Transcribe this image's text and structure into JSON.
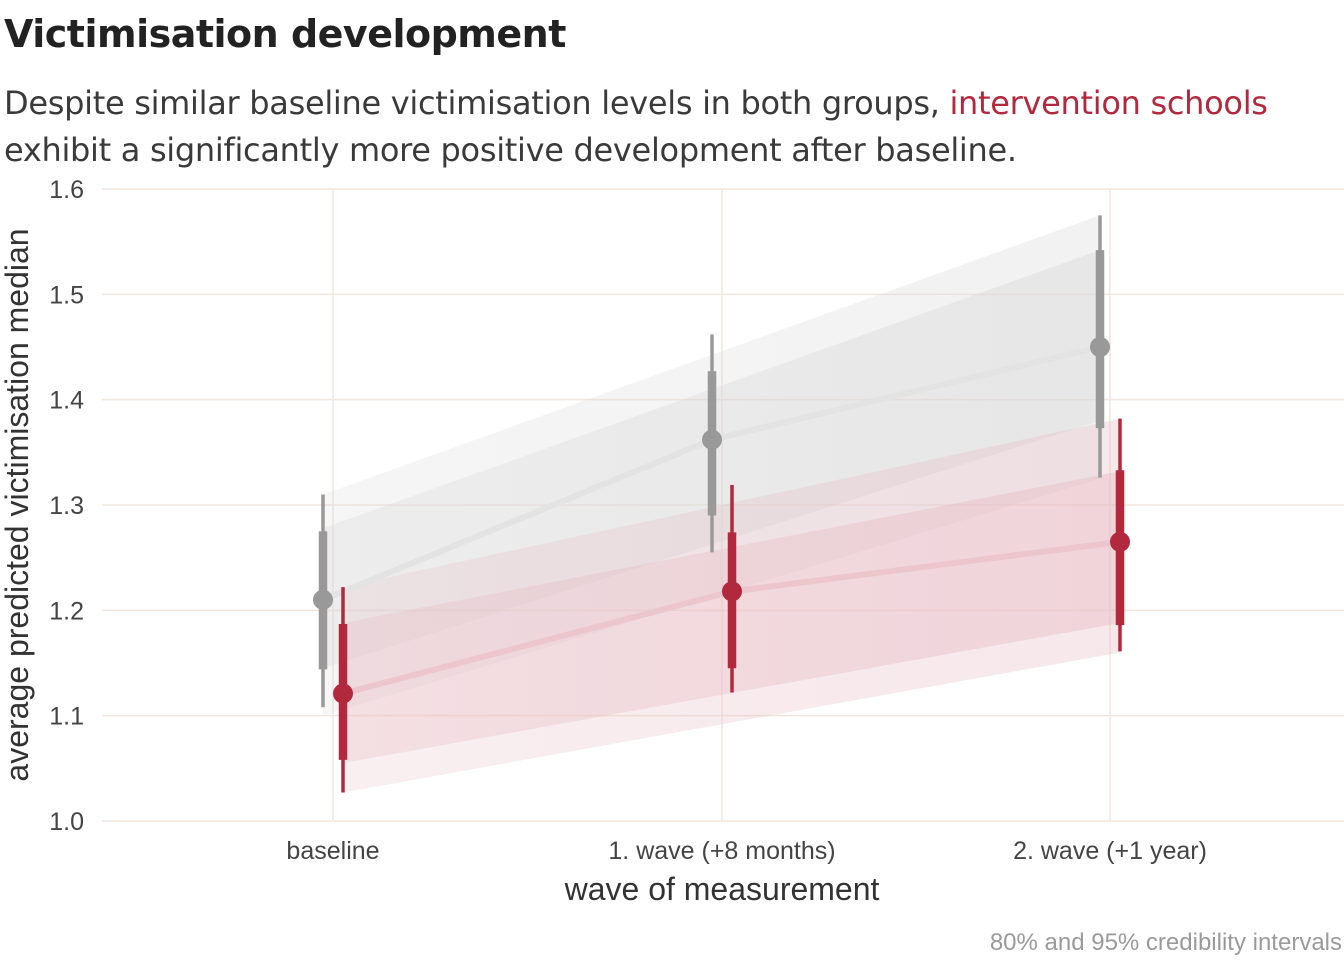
{
  "title": "Victimisation development",
  "subtitle": {
    "part1": "Despite similar baseline victimisation levels in both groups, ",
    "highlight": "intervention schools",
    "part2": " exhibit a significantly more positive development after baseline."
  },
  "caption": "80% and 95% credibility intervals",
  "colors": {
    "control": "#999999",
    "intervention": "#b2283d",
    "grid": "#f3e6de",
    "ribbon_control": "#d9d9d9",
    "ribbon_intervention": "#e7bcc4"
  },
  "chart_data": {
    "type": "line",
    "title": "Victimisation development",
    "xlabel": "wave of measurement",
    "ylabel": "average predicted victimisation median",
    "categories": [
      "baseline",
      "1. wave (+8 months)",
      "2. wave (+1 year)"
    ],
    "ylim": [
      1.0,
      1.6
    ],
    "yticks": [
      1.0,
      1.1,
      1.2,
      1.3,
      1.4,
      1.5,
      1.6
    ],
    "yticklabels": [
      "1.0",
      "1.1",
      "1.2",
      "1.3",
      "1.4",
      "1.5",
      "1.6"
    ],
    "grid": true,
    "legend": "none",
    "series": [
      {
        "group": "control",
        "color": "#999999",
        "median": [
          1.21,
          1.362,
          1.45
        ],
        "ci80": [
          [
            1.144,
            1.275
          ],
          [
            1.29,
            1.427
          ],
          [
            1.373,
            1.542
          ]
        ],
        "ci95": [
          [
            1.108,
            1.31
          ],
          [
            1.255,
            1.462
          ],
          [
            1.326,
            1.575
          ]
        ],
        "ribbon80": [
          [
            1.145,
            1.278
          ],
          [
            1.38,
            1.542
          ]
        ],
        "ribbon95": [
          [
            1.1,
            1.31
          ],
          [
            1.325,
            1.575
          ]
        ]
      },
      {
        "group": "intervention",
        "color": "#b2283d",
        "median": [
          1.121,
          1.218,
          1.265
        ],
        "ci80": [
          [
            1.058,
            1.187
          ],
          [
            1.145,
            1.274
          ],
          [
            1.186,
            1.333
          ]
        ],
        "ci95": [
          [
            1.027,
            1.222
          ],
          [
            1.122,
            1.319
          ],
          [
            1.161,
            1.382
          ]
        ],
        "ribbon80": [
          [
            1.055,
            1.188
          ],
          [
            1.188,
            1.332
          ]
        ],
        "ribbon95": [
          [
            1.027,
            1.222
          ],
          [
            1.16,
            1.382
          ]
        ]
      }
    ]
  }
}
